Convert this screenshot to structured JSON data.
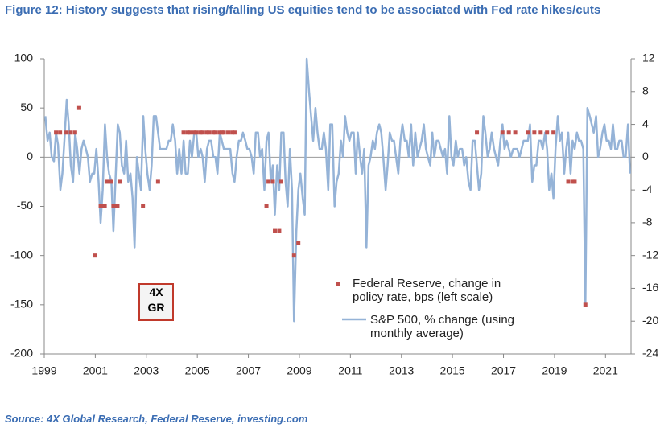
{
  "title": "Figure 12: History suggests that rising/falling US equities tend to be associated with Fed rate hikes/cuts",
  "source": "Source: 4X Global Research, Federal Reserve, investing.com",
  "logo": {
    "top": "4X",
    "bottom": "GR"
  },
  "chart_data": {
    "type": "combo",
    "xlim": [
      1999,
      2022
    ],
    "xticks": [
      1999,
      2001,
      2003,
      2005,
      2007,
      2009,
      2011,
      2013,
      2015,
      2017,
      2019,
      2021
    ],
    "ylim": [
      -200,
      100
    ],
    "yticks": [
      -200,
      -150,
      -100,
      -50,
      0,
      50,
      100
    ],
    "y2lim": [
      -24,
      12
    ],
    "y2ticks": [
      -24,
      -20,
      -16,
      -12,
      -8,
      -4,
      0,
      4,
      8,
      12
    ],
    "series": [
      {
        "name": "Federal Reserve, change in policy rate, bps (left scale)",
        "type": "scatter",
        "color": "#c0504d",
        "x": [
          1999.46,
          1999.62,
          1999.87,
          2000.04,
          2000.21,
          2000.37,
          2001.0,
          2001.21,
          2001.29,
          2001.37,
          2001.46,
          2001.62,
          2001.71,
          2001.79,
          2001.87,
          2001.96,
          2002.87,
          2003.46,
          2004.46,
          2004.62,
          2004.71,
          2004.87,
          2004.96,
          2005.12,
          2005.21,
          2005.37,
          2005.46,
          2005.62,
          2005.71,
          2005.87,
          2005.96,
          2006.04,
          2006.21,
          2006.37,
          2006.46,
          2007.71,
          2007.79,
          2007.96,
          2008.04,
          2008.21,
          2008.29,
          2008.79,
          2008.96,
          2015.96,
          2016.96,
          2017.21,
          2017.46,
          2017.96,
          2018.21,
          2018.46,
          2018.71,
          2018.96,
          2019.54,
          2019.71,
          2019.79,
          2020.21
        ],
        "values": [
          25,
          25,
          25,
          25,
          25,
          50,
          -100,
          -50,
          -50,
          -50,
          -25,
          -25,
          -50,
          -50,
          -50,
          -25,
          -50,
          -25,
          25,
          25,
          25,
          25,
          25,
          25,
          25,
          25,
          25,
          25,
          25,
          25,
          25,
          25,
          25,
          25,
          25,
          -50,
          -25,
          -25,
          -75,
          -75,
          -25,
          -100,
          -87.5,
          25,
          25,
          25,
          25,
          25,
          25,
          25,
          25,
          25,
          -25,
          -25,
          -25,
          -150
        ]
      },
      {
        "name": "S&P 500, % change (using monthly average)",
        "type": "line",
        "axis": "y2",
        "color": "#95b3d7",
        "x": [
          1999.04,
          1999.13,
          1999.21,
          1999.29,
          1999.38,
          1999.46,
          1999.54,
          1999.63,
          1999.71,
          1999.79,
          1999.88,
          1999.96,
          2000.04,
          2000.13,
          2000.21,
          2000.29,
          2000.38,
          2000.46,
          2000.54,
          2000.63,
          2000.71,
          2000.79,
          2000.88,
          2000.96,
          2001.04,
          2001.13,
          2001.21,
          2001.29,
          2001.38,
          2001.46,
          2001.54,
          2001.63,
          2001.71,
          2001.79,
          2001.88,
          2001.96,
          2002.04,
          2002.13,
          2002.21,
          2002.29,
          2002.38,
          2002.46,
          2002.54,
          2002.63,
          2002.71,
          2002.79,
          2002.88,
          2002.96,
          2003.04,
          2003.13,
          2003.21,
          2003.29,
          2003.38,
          2003.46,
          2003.54,
          2003.63,
          2003.71,
          2003.79,
          2003.88,
          2003.96,
          2004.04,
          2004.13,
          2004.21,
          2004.29,
          2004.38,
          2004.46,
          2004.54,
          2004.63,
          2004.71,
          2004.79,
          2004.88,
          2004.96,
          2005.04,
          2005.13,
          2005.21,
          2005.29,
          2005.38,
          2005.46,
          2005.54,
          2005.63,
          2005.71,
          2005.79,
          2005.88,
          2005.96,
          2006.04,
          2006.13,
          2006.21,
          2006.29,
          2006.38,
          2006.46,
          2006.54,
          2006.63,
          2006.71,
          2006.79,
          2006.88,
          2006.96,
          2007.04,
          2007.13,
          2007.21,
          2007.29,
          2007.38,
          2007.46,
          2007.54,
          2007.63,
          2007.71,
          2007.79,
          2007.88,
          2007.96,
          2008.04,
          2008.13,
          2008.21,
          2008.29,
          2008.38,
          2008.46,
          2008.54,
          2008.63,
          2008.71,
          2008.79,
          2008.88,
          2008.96,
          2009.04,
          2009.13,
          2009.21,
          2009.29,
          2009.38,
          2009.46,
          2009.54,
          2009.63,
          2009.71,
          2009.79,
          2009.88,
          2009.96,
          2010.04,
          2010.13,
          2010.21,
          2010.29,
          2010.38,
          2010.46,
          2010.54,
          2010.63,
          2010.71,
          2010.79,
          2010.88,
          2010.96,
          2011.04,
          2011.13,
          2011.21,
          2011.29,
          2011.38,
          2011.46,
          2011.54,
          2011.63,
          2011.71,
          2011.79,
          2011.88,
          2011.96,
          2012.04,
          2012.13,
          2012.21,
          2012.29,
          2012.38,
          2012.46,
          2012.54,
          2012.63,
          2012.71,
          2012.79,
          2012.88,
          2012.96,
          2013.04,
          2013.13,
          2013.21,
          2013.29,
          2013.38,
          2013.46,
          2013.54,
          2013.63,
          2013.71,
          2013.79,
          2013.88,
          2013.96,
          2014.04,
          2014.13,
          2014.21,
          2014.29,
          2014.38,
          2014.46,
          2014.54,
          2014.63,
          2014.71,
          2014.79,
          2014.88,
          2014.96,
          2015.04,
          2015.13,
          2015.21,
          2015.29,
          2015.38,
          2015.46,
          2015.54,
          2015.63,
          2015.71,
          2015.79,
          2015.88,
          2015.96,
          2016.04,
          2016.13,
          2016.21,
          2016.29,
          2016.38,
          2016.46,
          2016.54,
          2016.63,
          2016.71,
          2016.79,
          2016.88,
          2016.96,
          2017.04,
          2017.13,
          2017.21,
          2017.29,
          2017.38,
          2017.46,
          2017.54,
          2017.63,
          2017.71,
          2017.79,
          2017.88,
          2017.96,
          2018.04,
          2018.13,
          2018.21,
          2018.29,
          2018.38,
          2018.46,
          2018.54,
          2018.63,
          2018.71,
          2018.79,
          2018.88,
          2018.96,
          2019.04,
          2019.13,
          2019.21,
          2019.29,
          2019.38,
          2019.46,
          2019.54,
          2019.63,
          2019.71,
          2019.79,
          2019.88,
          2019.96,
          2020.04,
          2020.13,
          2020.21,
          2020.29,
          2020.38,
          2020.46,
          2020.54,
          2020.63,
          2020.71,
          2020.79,
          2020.88,
          2020.96,
          2021.04,
          2021.13,
          2021.21,
          2021.29,
          2021.38,
          2021.46,
          2021.54,
          2021.63,
          2021.71,
          2021.79,
          2021.88,
          2021.96
        ],
        "values": [
          5,
          2,
          3,
          0,
          -0.5,
          3,
          1.5,
          -4,
          -2,
          2,
          7,
          4,
          -1,
          -3,
          3,
          1,
          -2,
          1,
          2,
          1,
          0,
          -3,
          -2,
          -2,
          1,
          -3,
          -8,
          -4,
          4,
          0,
          -2,
          -3,
          -9,
          -3,
          4,
          3,
          -1,
          -2,
          2,
          -3,
          -2,
          -5,
          -11,
          0,
          -2,
          -4,
          5,
          1,
          -2,
          -4,
          -1,
          5,
          5,
          3,
          1,
          1,
          1,
          1,
          2,
          2,
          4,
          2,
          -2,
          1,
          -2,
          2,
          -2,
          -2,
          2,
          0,
          3,
          3,
          0,
          1,
          0,
          -3,
          1,
          2,
          2,
          0,
          0,
          -2,
          3,
          2,
          1,
          1,
          1,
          1,
          -2,
          -3,
          0,
          2,
          2,
          3,
          2,
          1,
          1,
          0,
          -2,
          3,
          3,
          0,
          1,
          -4,
          2,
          3,
          -3,
          -1,
          -7,
          -1,
          -4,
          3,
          3,
          -3,
          -6,
          1,
          -4,
          -20,
          -9,
          -4,
          -2,
          -5,
          -7,
          12,
          8,
          5,
          2,
          6,
          3,
          1,
          1,
          3,
          1,
          -4,
          4,
          4,
          -6,
          -3,
          -2,
          2,
          0,
          5,
          3,
          2,
          3,
          3,
          -2,
          3,
          0,
          -2,
          1,
          -11,
          -1,
          0,
          2,
          1,
          3,
          4,
          3,
          0,
          -4,
          -1,
          3,
          2,
          2,
          0,
          -2,
          2,
          4,
          2,
          2,
          0,
          4,
          -1,
          3,
          0,
          1,
          2,
          4,
          1,
          0,
          -1,
          3,
          0,
          2,
          2,
          1,
          0,
          1,
          -2,
          5,
          0,
          -1,
          2,
          0,
          1,
          1,
          -1,
          0,
          -3,
          -4,
          2,
          2,
          -1,
          -4,
          -2,
          5,
          3,
          0,
          1,
          3,
          1,
          0,
          -1,
          2,
          4,
          1,
          2,
          1,
          0,
          1,
          1,
          1,
          0,
          1,
          2,
          2,
          2,
          4,
          -3,
          -1,
          -1,
          2,
          2,
          1,
          3,
          1,
          -4,
          -2,
          -5,
          1,
          5,
          2,
          3,
          -2,
          1,
          3,
          -2,
          2,
          1,
          3,
          2,
          2,
          1,
          -18,
          6,
          5,
          4,
          3,
          5,
          0,
          1,
          3,
          4,
          2,
          2,
          1,
          4,
          1,
          1,
          2,
          2,
          0,
          0,
          4,
          -2
        ]
      }
    ]
  }
}
